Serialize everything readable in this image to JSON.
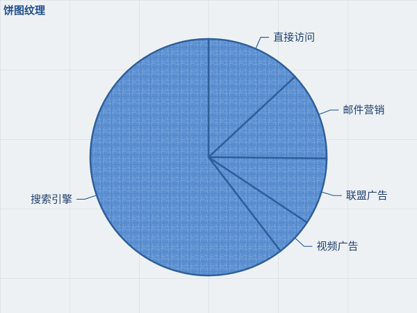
{
  "chart_data": {
    "type": "pie",
    "title": "饼图纹理",
    "categories": [
      "直接访问",
      "邮件营销",
      "联盟广告",
      "视频广告",
      "搜索引擎"
    ],
    "values": [
      335,
      310,
      234,
      135,
      1548
    ],
    "legend": "none",
    "slice_color": "#5b8fd1",
    "border_color": "#2e5f9a",
    "label_color": "#1f3f6e"
  }
}
